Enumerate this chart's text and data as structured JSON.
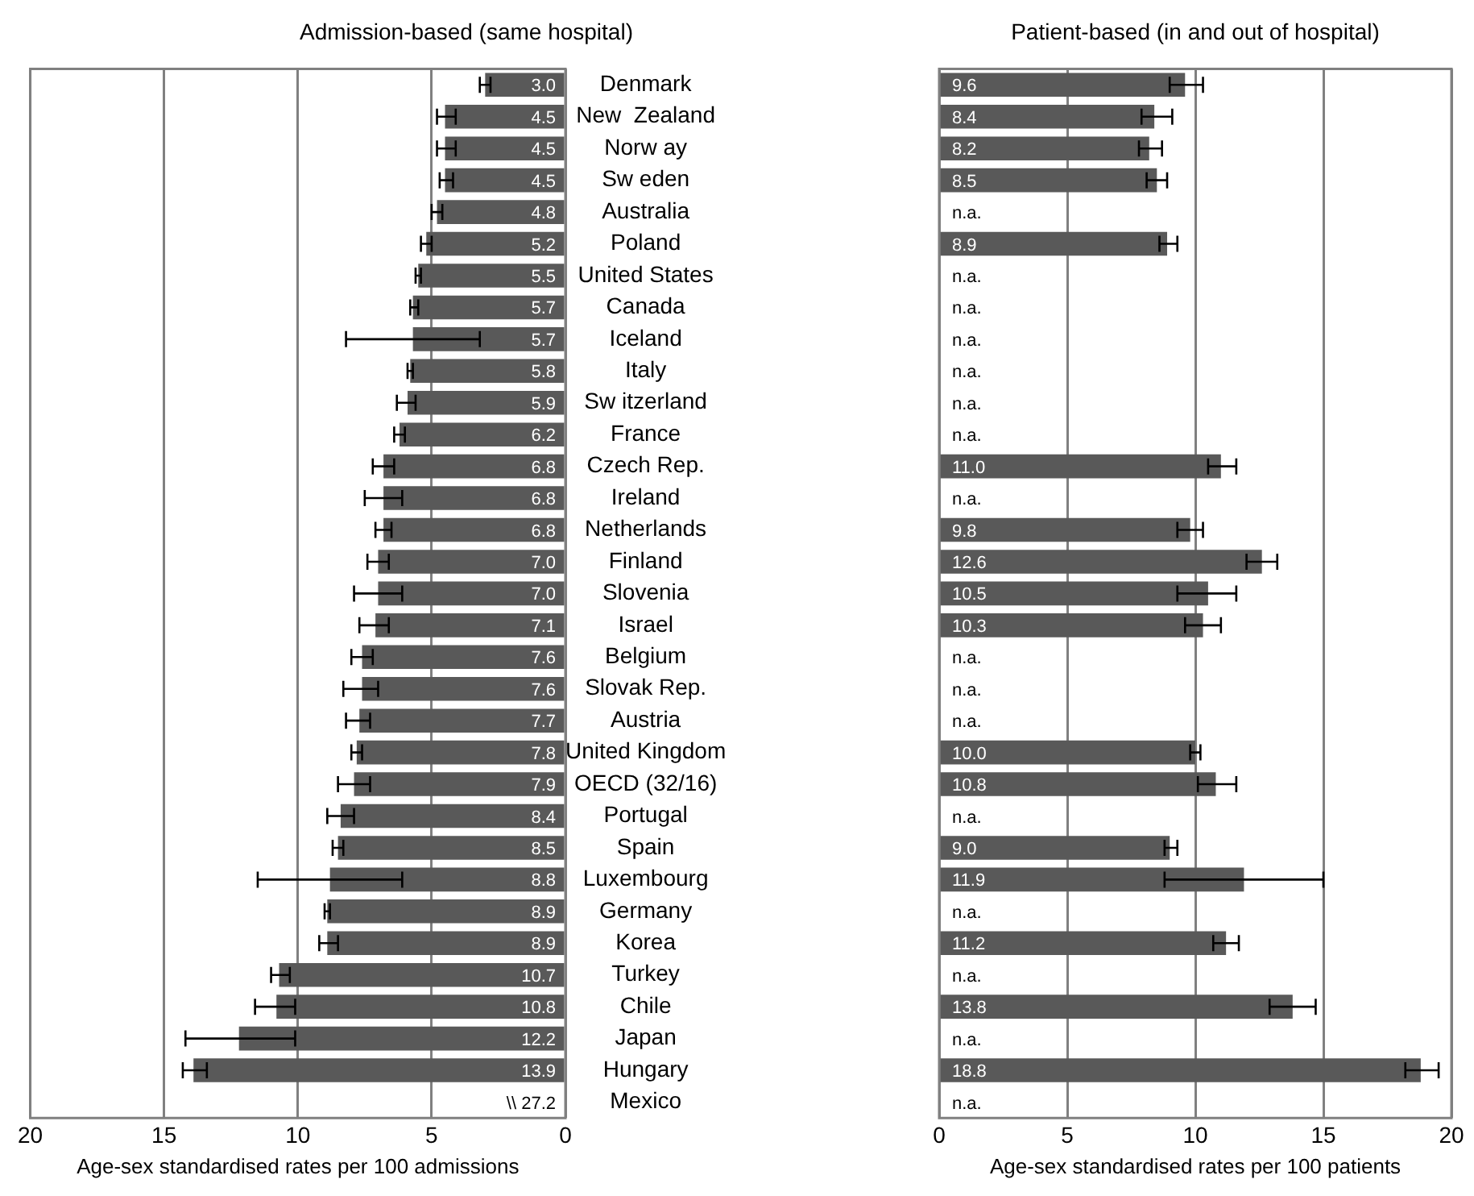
{
  "chart_data": [
    {
      "type": "bar",
      "orientation": "horizontal",
      "title": "Admission-based (same hospital)",
      "xlabel": "Age-sex standardised rates per 100 admissions",
      "categories": [
        "Denmark",
        "New  Zealand",
        "Norw ay",
        "Sw eden",
        "Australia",
        "Poland",
        "United States",
        "Canada",
        "Iceland",
        "Italy",
        "Sw itzerland",
        "France",
        "Czech Rep.",
        "Ireland",
        "Netherlands",
        "Finland",
        "Slovenia",
        "Israel",
        "Belgium",
        "Slovak Rep.",
        "Austria",
        "United Kingdom",
        "OECD (32/16)",
        "Portugal",
        "Spain",
        "Luxembourg",
        "Germany",
        "Korea",
        "Turkey",
        "Chile",
        "Japan",
        "Hungary",
        "Mexico"
      ],
      "values": [
        3.0,
        4.5,
        4.5,
        4.5,
        4.8,
        5.2,
        5.5,
        5.7,
        5.7,
        5.8,
        5.9,
        6.2,
        6.8,
        6.8,
        6.8,
        7.0,
        7.0,
        7.1,
        7.6,
        7.6,
        7.7,
        7.8,
        7.9,
        8.4,
        8.5,
        8.8,
        8.9,
        8.9,
        10.7,
        10.8,
        12.2,
        13.9,
        null
      ],
      "value_labels": [
        "3.0",
        "4.5",
        "4.5",
        "4.5",
        "4.8",
        "5.2",
        "5.5",
        "5.7",
        "5.7",
        "5.8",
        "5.9",
        "6.2",
        "6.8",
        "6.8",
        "6.8",
        "7.0",
        "7.0",
        "7.1",
        "7.6",
        "7.6",
        "7.7",
        "7.8",
        "7.9",
        "8.4",
        "8.5",
        "8.8",
        "8.9",
        "8.9",
        "10.7",
        "10.8",
        "12.2",
        "13.9",
        "\\\\ 27.2"
      ],
      "errors": [
        [
          2.8,
          3.2
        ],
        [
          4.1,
          4.8
        ],
        [
          4.1,
          4.8
        ],
        [
          4.2,
          4.7
        ],
        [
          4.6,
          5.0
        ],
        [
          5.0,
          5.4
        ],
        [
          5.4,
          5.6
        ],
        [
          5.5,
          5.8
        ],
        [
          3.2,
          8.2
        ],
        [
          5.7,
          5.9
        ],
        [
          5.6,
          6.3
        ],
        [
          6.0,
          6.4
        ],
        [
          6.4,
          7.2
        ],
        [
          6.1,
          7.5
        ],
        [
          6.5,
          7.1
        ],
        [
          6.6,
          7.4
        ],
        [
          6.1,
          7.9
        ],
        [
          6.6,
          7.7
        ],
        [
          7.2,
          8.0
        ],
        [
          7.0,
          8.3
        ],
        [
          7.3,
          8.2
        ],
        [
          7.6,
          8.0
        ],
        [
          7.3,
          8.5
        ],
        [
          7.9,
          8.9
        ],
        [
          8.3,
          8.7
        ],
        [
          6.1,
          11.5
        ],
        [
          8.8,
          9.0
        ],
        [
          8.5,
          9.2
        ],
        [
          10.3,
          11.0
        ],
        [
          10.1,
          11.6
        ],
        [
          10.1,
          14.2
        ],
        [
          13.4,
          14.3
        ],
        null
      ],
      "color": "#595959",
      "xlim": [
        20,
        0
      ],
      "xticks": [
        20,
        15,
        10,
        5,
        0
      ],
      "grid": "x"
    },
    {
      "type": "bar",
      "orientation": "horizontal",
      "title": "Patient-based (in and out of hospital)",
      "xlabel": "Age-sex standardised rates per 100 patients",
      "categories": [
        null,
        null,
        null,
        null,
        null,
        null,
        null,
        null,
        null,
        null,
        null,
        null,
        null,
        null,
        null,
        null,
        null,
        null,
        null,
        null,
        null,
        null,
        null,
        null,
        null,
        null,
        null,
        null,
        null,
        null,
        null,
        null,
        null
      ],
      "values": [
        9.6,
        8.4,
        8.2,
        8.5,
        null,
        8.9,
        null,
        null,
        null,
        null,
        null,
        null,
        11.0,
        null,
        9.8,
        12.6,
        10.5,
        10.3,
        null,
        null,
        null,
        10.0,
        10.8,
        null,
        9.0,
        11.9,
        null,
        11.2,
        null,
        13.8,
        null,
        18.8,
        null
      ],
      "value_labels": [
        "9.6",
        "8.4",
        "8.2",
        "8.5",
        "n.a.",
        "8.9",
        "n.a.",
        "n.a.",
        "n.a.",
        "n.a.",
        "n.a.",
        "n.a.",
        "11.0",
        "n.a.",
        "9.8",
        "12.6",
        "10.5",
        "10.3",
        "n.a.",
        "n.a.",
        "n.a.",
        "10.0",
        "10.8",
        "n.a.",
        "9.0",
        "11.9",
        "n.a.",
        "11.2",
        "n.a.",
        "13.8",
        "n.a.",
        "18.8",
        "n.a."
      ],
      "errors": [
        [
          9.0,
          10.3
        ],
        [
          7.9,
          9.1
        ],
        [
          7.8,
          8.7
        ],
        [
          8.1,
          8.9
        ],
        null,
        [
          8.6,
          9.3
        ],
        null,
        null,
        null,
        null,
        null,
        null,
        [
          10.5,
          11.6
        ],
        null,
        [
          9.3,
          10.3
        ],
        [
          12.0,
          13.2
        ],
        [
          9.3,
          11.6
        ],
        [
          9.6,
          11.0
        ],
        null,
        null,
        null,
        [
          9.8,
          10.2
        ],
        [
          10.1,
          11.6
        ],
        null,
        [
          8.8,
          9.3
        ],
        [
          8.8,
          15.0
        ],
        null,
        [
          10.7,
          11.7
        ],
        null,
        [
          12.9,
          14.7
        ],
        null,
        [
          18.2,
          19.5
        ],
        null
      ],
      "color": "#595959",
      "xlim": [
        0,
        20
      ],
      "xticks": [
        0,
        5,
        10,
        15,
        20
      ],
      "grid": "x",
      "tick_labels": "x"
    }
  ]
}
